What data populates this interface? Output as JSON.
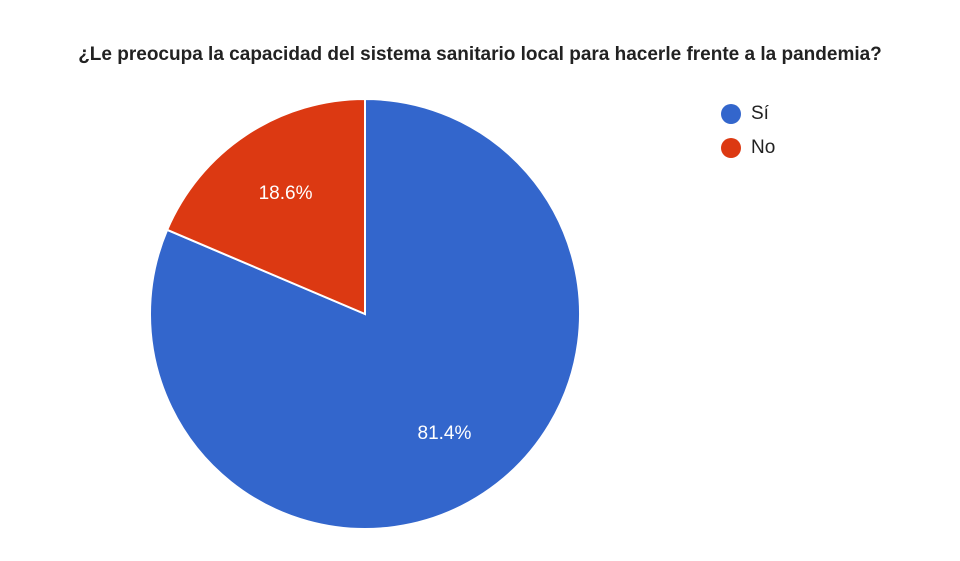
{
  "chart_data": {
    "type": "pie",
    "title": "¿Le preocupa la capacidad del sistema sanitario local para hacerle frente a la pandemia?",
    "slices": [
      {
        "label": "Sí",
        "value": 81.4,
        "value_label": "81.4%",
        "color": "#3366cc"
      },
      {
        "label": "No",
        "value": 18.6,
        "value_label": "18.6%",
        "color": "#dc3912"
      }
    ],
    "start_angle": "top, clockwise",
    "legend_position": "right"
  }
}
